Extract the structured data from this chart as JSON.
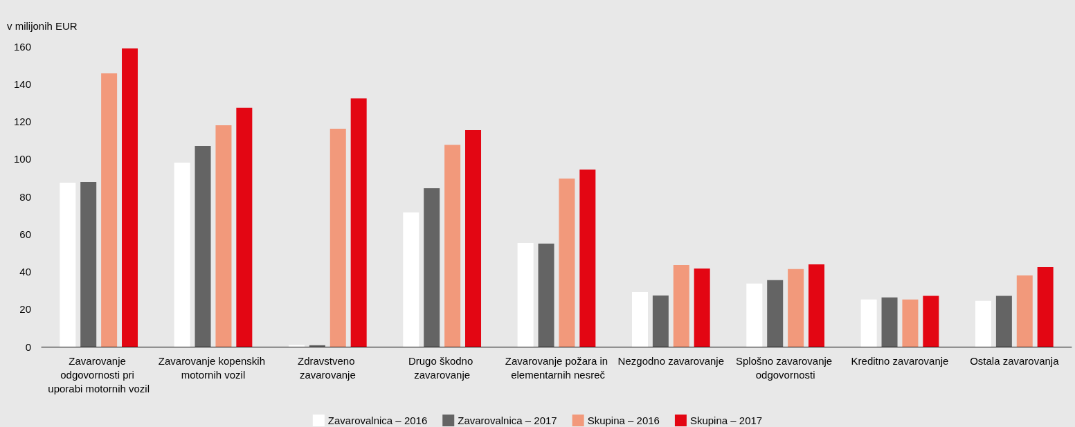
{
  "chart_data": {
    "type": "bar",
    "ylabel": "v milijonih EUR",
    "categories": [
      "Zavarovanje odgovornosti pri uporabi motornih vozil",
      "Zavarovanje kopenskih motornih vozil",
      "Zdravstveno zavarovanje",
      "Drugo škodno zavarovanje",
      "Zavarovanje požara in elementarnih nesreč",
      "Nezgodno zavarovanje",
      "Splošno zavarovanje odgovornosti",
      "Kreditno zavarovanje",
      "Ostala zavarovanja"
    ],
    "series": [
      {
        "name": "Zavarovalnica – 2016",
        "color": "#ffffff",
        "values": [
          87.4,
          98.1,
          0.9,
          71.5,
          55.3,
          29.1,
          33.6,
          25.2,
          24.4
        ]
      },
      {
        "name": "Zavarovalnica – 2017",
        "color": "#646464",
        "values": [
          87.7,
          106.9,
          0.8,
          84.4,
          54.9,
          27.3,
          35.5,
          26.3,
          27.1
        ]
      },
      {
        "name": "Skupina – 2016",
        "color": "#f2997b",
        "values": [
          145.6,
          118,
          116.1,
          107.6,
          89.6,
          43.5,
          41.4,
          25.2,
          38
        ]
      },
      {
        "name": "Skupina – 2017",
        "color": "#e30613",
        "values": [
          158.9,
          127.3,
          132.3,
          115.4,
          94.4,
          41.7,
          43.9,
          27.1,
          42.4
        ]
      }
    ],
    "ylim": [
      0,
      160
    ],
    "yticks": [
      0,
      20,
      40,
      60,
      80,
      100,
      120,
      140,
      160
    ],
    "grid": false,
    "legend": "bottom"
  }
}
